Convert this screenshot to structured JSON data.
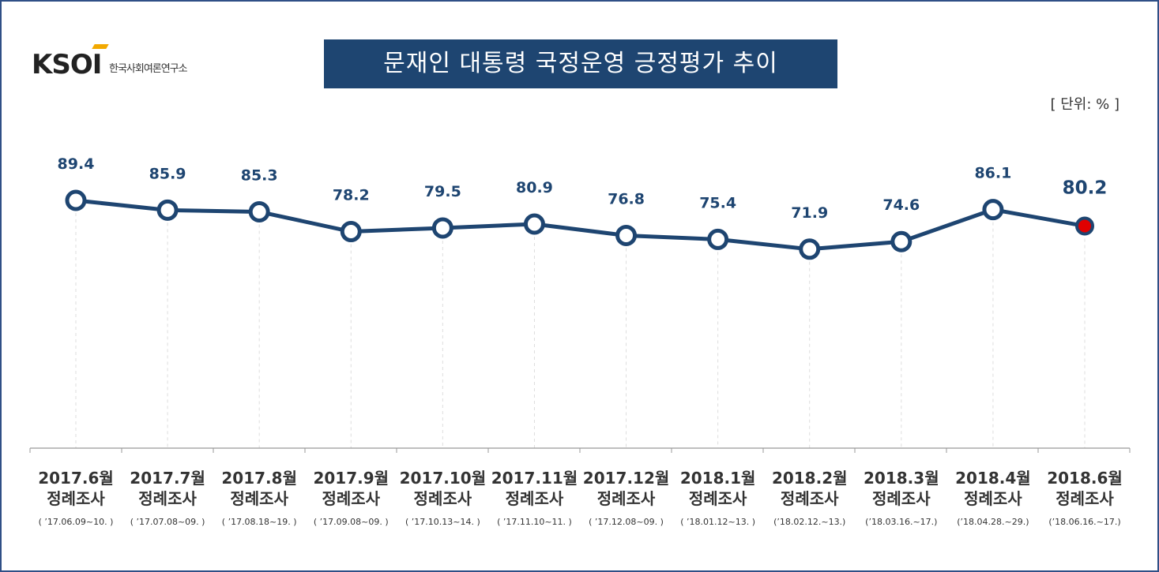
{
  "logo": {
    "mark": "KSOI",
    "org_name": "한국사회여론연구소"
  },
  "unit_label": "[ 단위: % ]",
  "chart_data": {
    "type": "line",
    "title": "문재인 대통령 국정운영 긍정평가 추이",
    "categories": [
      {
        "month": "2017.6월",
        "survey": "정례조사",
        "dates": "( ’17.06.09~10. )"
      },
      {
        "month": "2017.7월",
        "survey": "정례조사",
        "dates": "( ’17.07.08~09. )"
      },
      {
        "month": "2017.8월",
        "survey": "정례조사",
        "dates": "( ’17.08.18~19. )"
      },
      {
        "month": "2017.9월",
        "survey": "정례조사",
        "dates": "( ’17.09.08~09. )"
      },
      {
        "month": "2017.10월",
        "survey": "정례조사",
        "dates": "( ’17.10.13~14. )"
      },
      {
        "month": "2017.11월",
        "survey": "정례조사",
        "dates": "( ’17.11.10~11. )"
      },
      {
        "month": "2017.12월",
        "survey": "정례조사",
        "dates": "( ’17.12.08~09. )"
      },
      {
        "month": "2018.1월",
        "survey": "정례조사",
        "dates": "( ’18.01.12~13. )"
      },
      {
        "month": "2018.2월",
        "survey": "정례조사",
        "dates": "(’18.02.12.~13.)"
      },
      {
        "month": "2018.3월",
        "survey": "정례조사",
        "dates": "(’18.03.16.~17.)"
      },
      {
        "month": "2018.4월",
        "survey": "정례조사",
        "dates": "(’18.04.28.~29.)"
      },
      {
        "month": "2018.6월",
        "survey": "정례조사",
        "dates": "(’18.06.16.~17.)"
      }
    ],
    "values": [
      89.4,
      85.9,
      85.3,
      78.2,
      79.5,
      80.9,
      76.8,
      75.4,
      71.9,
      74.6,
      86.1,
      80.2
    ],
    "data_labels": [
      "89.4",
      "85.9",
      "85.3",
      "78.2",
      "79.5",
      "80.9",
      "76.8",
      "75.4",
      "71.9",
      "74.6",
      "86.1",
      "80.2"
    ],
    "colors": {
      "line": "#1e4571",
      "marker_fill": "#ffffff",
      "last_marker_fill": "#e00000",
      "title_bg": "#1e4571",
      "frame": "#2f4f86"
    },
    "grid": false,
    "vertical_guides": "dashed"
  }
}
